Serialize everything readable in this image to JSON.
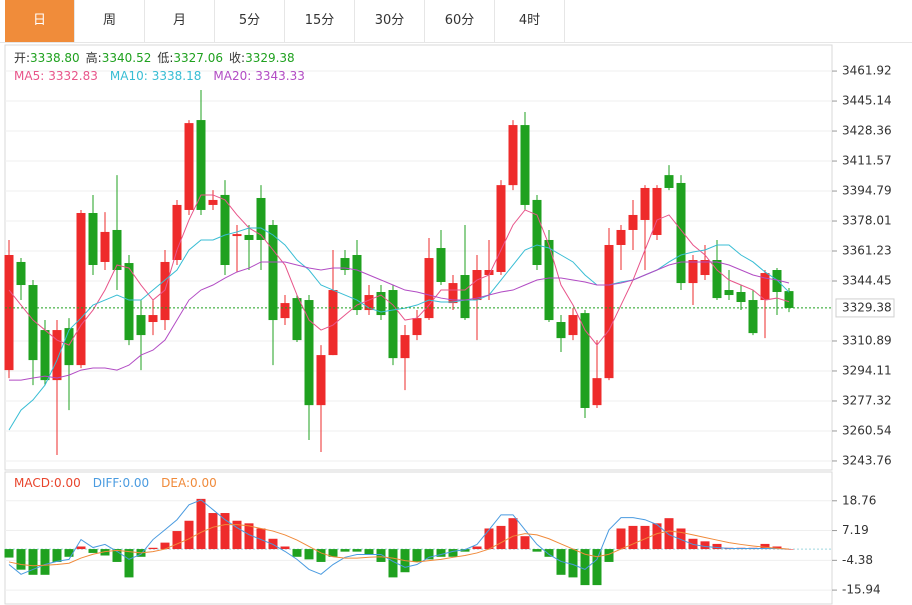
{
  "tabs": [
    "日",
    "周",
    "月",
    "5分",
    "15分",
    "30分",
    "60分",
    "4时"
  ],
  "active_tab": 0,
  "chart_data": [
    {
      "type": "candlestick",
      "up_color": "#ee2b2b",
      "down_color": "#1fa11f",
      "legend": [
        {
          "label": "开:",
          "value": "3338.80"
        },
        {
          "label": "高:",
          "value": "3340.52"
        },
        {
          "label": "低:",
          "value": "3327.06"
        },
        {
          "label": "收:",
          "value": "3329.38"
        }
      ],
      "open": [
        3294.6,
        3355.1,
        3342.2,
        3317.0,
        3289.0,
        3318.1,
        3297.4,
        3382.5,
        3355.1,
        3373.0,
        3354.5,
        3325.4,
        3321.5,
        3322.6,
        3356.2,
        3384.2,
        3434.5,
        3387.0,
        3392.6,
        3369.6,
        3370.2,
        3390.9,
        3375.8,
        3323.7,
        3334.9,
        3333.8,
        3275.0,
        3303.0,
        3357.3,
        3359.0,
        3328.2,
        3338.3,
        3339.4,
        3301.3,
        3314.2,
        3323.7,
        3362.9,
        3332.1,
        3347.8,
        3333.8,
        3347.8,
        3349.5,
        3398.1,
        3431.7,
        3389.8,
        3367.4,
        3321.5,
        3314.2,
        3326.5,
        3275.0,
        3290.1,
        3364.6,
        3373.0,
        3378.6,
        3370.2,
        3403.7,
        3399.3,
        3343.3,
        3347.8,
        3356.2,
        3339.4,
        3338.3,
        3333.8,
        3333.8,
        3350.6,
        3338.8
      ],
      "high": [
        3367.4,
        3357.3,
        3345.0,
        3322.6,
        3322.6,
        3323.7,
        3384.2,
        3392.6,
        3383.0,
        3403.7,
        3359.0,
        3333.8,
        3333.8,
        3361.8,
        3389.8,
        3434.5,
        3451.3,
        3395.3,
        3400.9,
        3375.8,
        3375.8,
        3398.1,
        3378.6,
        3336.6,
        3336.6,
        3336.6,
        3308.6,
        3361.8,
        3361.8,
        3367.4,
        3342.2,
        3342.2,
        3342.2,
        3319.8,
        3328.2,
        3368.5,
        3373.0,
        3347.8,
        3375.8,
        3359.0,
        3367.4,
        3400.9,
        3434.5,
        3439.0,
        3392.6,
        3373.0,
        3325.4,
        3329.3,
        3328.2,
        3311.4,
        3374.1,
        3375.8,
        3389.8,
        3398.1,
        3398.1,
        3409.3,
        3403.7,
        3359.0,
        3364.6,
        3367.4,
        3350.6,
        3342.2,
        3339.4,
        3350.6,
        3351.7,
        3340.52
      ],
      "low": [
        3290.1,
        3333.8,
        3286.2,
        3286.2,
        3247.1,
        3272.2,
        3295.7,
        3347.8,
        3350.6,
        3339.4,
        3308.6,
        3294.6,
        3314.2,
        3317.0,
        3353.4,
        3381.4,
        3381.4,
        3384.2,
        3347.8,
        3349.5,
        3350.6,
        3350.6,
        3297.4,
        3319.8,
        3310.3,
        3255.5,
        3248.8,
        3303.0,
        3347.8,
        3325.4,
        3325.4,
        3322.6,
        3297.4,
        3283.4,
        3311.4,
        3322.6,
        3342.2,
        3328.2,
        3322.6,
        3311.4,
        3333.8,
        3347.8,
        3395.3,
        3384.2,
        3350.6,
        3321.5,
        3304.7,
        3311.4,
        3267.8,
        3273.4,
        3289.0,
        3350.6,
        3361.8,
        3350.6,
        3367.4,
        3395.3,
        3339.4,
        3331.0,
        3345.0,
        3333.8,
        3333.8,
        3328.2,
        3314.2,
        3312.5,
        3325.4,
        3327.06
      ],
      "close": [
        3359.0,
        3342.2,
        3300.2,
        3289.0,
        3317.0,
        3297.4,
        3382.5,
        3353.4,
        3371.9,
        3350.6,
        3311.4,
        3314.2,
        3325.4,
        3355.1,
        3387.0,
        3432.8,
        3384.2,
        3389.8,
        3353.4,
        3370.7,
        3367.4,
        3367.4,
        3322.6,
        3332.1,
        3311.4,
        3275.0,
        3303.0,
        3339.4,
        3350.6,
        3328.2,
        3336.6,
        3325.4,
        3301.3,
        3314.2,
        3323.7,
        3357.3,
        3343.9,
        3343.3,
        3323.7,
        3350.6,
        3350.6,
        3398.1,
        3431.7,
        3387.0,
        3353.4,
        3322.6,
        3312.5,
        3325.4,
        3273.4,
        3290.1,
        3364.6,
        3373.0,
        3381.4,
        3396.5,
        3396.5,
        3396.5,
        3343.3,
        3356.2,
        3356.2,
        3334.9,
        3336.6,
        3332.7,
        3315.3,
        3348.9,
        3338.3,
        3329.38
      ],
      "series": [
        {
          "name": "MA5:",
          "color": "#e8558a",
          "values": [
            3339.4,
            3331.0,
            3322.6,
            3317.0,
            3311.4,
            3308.6,
            3319.8,
            3328.2,
            3339.4,
            3353.4,
            3351.7,
            3342.2,
            3333.8,
            3339.4,
            3361.8,
            3378.6,
            3392.6,
            3392.6,
            3389.8,
            3381.4,
            3374.1,
            3370.2,
            3361.8,
            3353.4,
            3336.6,
            3322.6,
            3317.0,
            3319.8,
            3325.4,
            3331.0,
            3333.8,
            3336.6,
            3331.0,
            3322.6,
            3323.7,
            3331.0,
            3339.4,
            3339.4,
            3339.4,
            3345.0,
            3347.8,
            3361.8,
            3375.8,
            3384.2,
            3381.4,
            3364.6,
            3342.2,
            3331.0,
            3317.0,
            3308.6,
            3317.0,
            3331.0,
            3345.0,
            3361.8,
            3378.6,
            3381.4,
            3373.0,
            3364.6,
            3359.0,
            3350.6,
            3345.0,
            3342.2,
            3339.4,
            3333.8,
            3334.9,
            3332.83
          ]
        },
        {
          "name": "MA10:",
          "color": "#38bdd4",
          "values": [
            3261.1,
            3272.2,
            3277.9,
            3286.2,
            3300.2,
            3317.0,
            3323.7,
            3331.0,
            3333.8,
            3336.6,
            3333.8,
            3333.8,
            3339.4,
            3345.0,
            3350.6,
            3361.8,
            3367.4,
            3367.4,
            3370.2,
            3371.9,
            3374.1,
            3374.1,
            3370.2,
            3364.6,
            3356.2,
            3350.6,
            3342.2,
            3339.4,
            3336.6,
            3333.8,
            3329.3,
            3327.1,
            3328.2,
            3329.3,
            3331.0,
            3333.8,
            3332.7,
            3332.7,
            3333.8,
            3333.8,
            3336.6,
            3345.0,
            3353.4,
            3361.8,
            3364.6,
            3362.9,
            3359.0,
            3355.1,
            3347.8,
            3342.2,
            3342.2,
            3343.9,
            3345.0,
            3347.8,
            3350.6,
            3355.1,
            3359.0,
            3360.7,
            3361.8,
            3364.6,
            3364.6,
            3359.0,
            3355.1,
            3349.5,
            3345.0,
            3338.18
          ]
        },
        {
          "name": "MA20:",
          "color": "#b24cc4",
          "values": [
            3289.0,
            3289.0,
            3290.2,
            3291.2,
            3290.2,
            3291.8,
            3294.6,
            3295.8,
            3295.8,
            3294.6,
            3297.4,
            3303.0,
            3305.8,
            3311.4,
            3322.6,
            3333.8,
            3339.4,
            3342.2,
            3346.1,
            3349.5,
            3351.7,
            3355.1,
            3355.1,
            3355.1,
            3353.4,
            3351.7,
            3350.6,
            3351.7,
            3351.7,
            3350.6,
            3347.8,
            3345.0,
            3342.2,
            3339.4,
            3338.3,
            3336.6,
            3334.9,
            3333.8,
            3333.8,
            3334.9,
            3336.6,
            3338.3,
            3339.4,
            3342.2,
            3345.0,
            3346.1,
            3346.1,
            3345.0,
            3343.9,
            3342.2,
            3342.2,
            3343.3,
            3345.0,
            3347.8,
            3350.6,
            3353.4,
            3355.1,
            3355.1,
            3355.1,
            3355.1,
            3353.4,
            3350.6,
            3347.8,
            3346.1,
            3345.0,
            3343.33
          ]
        }
      ],
      "ylim": [
        3238.7,
        3476.5
      ],
      "yticks": [
        3461.92,
        3445.14,
        3428.36,
        3411.57,
        3394.79,
        3378.01,
        3361.23,
        3344.45,
        3310.89,
        3294.11,
        3277.32,
        3260.54,
        3243.76
      ],
      "grid": true
    },
    {
      "type": "macd",
      "up_color": "#ee2b2b",
      "down_color": "#1fa11f",
      "legend": [
        {
          "label": "MACD:",
          "value": "0.00",
          "color": "#e8442c"
        },
        {
          "label": "DIFF:",
          "value": "0.00",
          "color": "#4a9be0"
        },
        {
          "label": "DEA:",
          "value": "0.00",
          "color": "#f08a3a"
        }
      ],
      "values": [
        -3.3,
        -8,
        -10,
        -10,
        -5,
        -3,
        1,
        -1.5,
        -2.5,
        -5,
        -11,
        -3,
        0.5,
        2.5,
        7,
        11,
        19.5,
        14,
        14,
        11,
        10,
        8,
        4,
        1,
        -3,
        -4,
        -5,
        -3,
        -1,
        -1,
        -2,
        -5,
        -11,
        -9,
        -5,
        -4,
        -3,
        -3,
        -1,
        1,
        8,
        9,
        12,
        5,
        -1,
        -3,
        -10,
        -11,
        -14,
        -14,
        -5,
        8,
        9,
        9,
        10,
        12,
        8,
        4,
        3,
        2,
        0.5,
        0.5,
        0.5,
        2,
        1,
        0
      ],
      "series": [
        {
          "name": "DIFF",
          "color": "#4a9be0",
          "values": [
            -6,
            -9.8,
            -7.9,
            -6,
            -4.8,
            -4,
            3.7,
            0.6,
            1.8,
            -0.9,
            -4,
            -2,
            3.7,
            7.5,
            11.4,
            17.2,
            19.1,
            15.3,
            11.4,
            8.3,
            5.6,
            3.7,
            1.8,
            -0.9,
            -4,
            -7.9,
            -9.8,
            -6,
            -3.2,
            -2.1,
            -2.1,
            -2.1,
            -4.8,
            -7.1,
            -6,
            -3.2,
            -2.1,
            -0.9,
            -0.2,
            1.8,
            7.5,
            13.3,
            13.3,
            7.5,
            1.8,
            -2.1,
            -4.8,
            -6,
            -7.9,
            -4,
            7.5,
            12.2,
            12.2,
            11.4,
            9.5,
            5.6,
            3.7,
            1.8,
            1,
            0.6,
            0.2,
            0.2,
            0.2,
            0.2,
            0.2,
            0
          ]
        },
        {
          "name": "DEA",
          "color": "#f08a3a",
          "values": [
            -5,
            -6,
            -6.5,
            -6.3,
            -6,
            -5.5,
            -3.5,
            -2,
            -1,
            -0.5,
            -1,
            -1.5,
            -1,
            0,
            2,
            4,
            6.5,
            8.5,
            9.5,
            9.5,
            9,
            8,
            7,
            5.5,
            3.5,
            1,
            -1.5,
            -3,
            -3.5,
            -3.5,
            -3.2,
            -3,
            -3.5,
            -4.5,
            -5,
            -4.5,
            -4,
            -3.2,
            -2.5,
            -1.5,
            0,
            2.5,
            5,
            6,
            5.5,
            4,
            2,
            0,
            -2,
            -3,
            -2,
            0,
            2,
            4,
            6,
            7,
            6.5,
            5.5,
            4.5,
            3.5,
            2.5,
            1.8,
            1.2,
            0.7,
            0.3,
            0
          ]
        }
      ],
      "ylim": [
        -21.34,
        29.94
      ],
      "yticks": [
        18.76,
        7.19,
        -4.38,
        -15.94
      ],
      "grid": true
    }
  ]
}
